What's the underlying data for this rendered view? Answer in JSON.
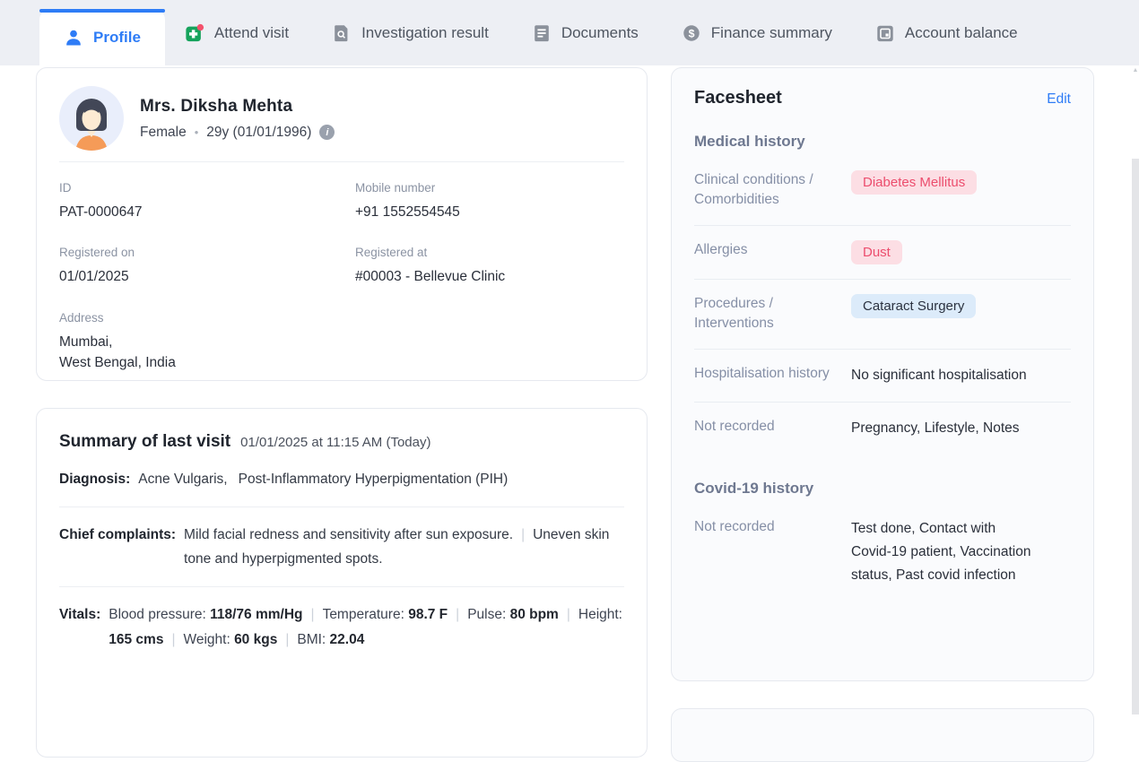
{
  "colors": {
    "accent_blue": "#2e7cf6",
    "tabbar_bg": "#edeff4",
    "green_icon": "#16a35c",
    "red_badge": "#f4516c",
    "chip_red_bg": "#fcdee4",
    "chip_red_text": "#ec4d6d",
    "chip_blue_bg": "#dcebfa",
    "label_gray": "#858fa6"
  },
  "tabs": [
    {
      "label": "Profile",
      "icon": "person",
      "active": true
    },
    {
      "label": "Attend visit",
      "icon": "plus-badge",
      "active": false
    },
    {
      "label": "Investigation result",
      "icon": "doc-search",
      "active": false
    },
    {
      "label": "Documents",
      "icon": "doc-lines",
      "active": false
    },
    {
      "label": "Finance summary",
      "icon": "dollar-circle",
      "active": false
    },
    {
      "label": "Account balance",
      "icon": "card",
      "active": false
    }
  ],
  "patient": {
    "name": "Mrs. Diksha Mehta",
    "gender": "Female",
    "separator_dot": "•",
    "age_dob": "29y (01/01/1996)",
    "info_glyph": "i",
    "id": {
      "label": "ID",
      "value": "PAT-0000647"
    },
    "mobile": {
      "label": "Mobile number",
      "value": "+91 1552554545"
    },
    "registered_on": {
      "label": "Registered on",
      "value": "01/01/2025"
    },
    "registered_at": {
      "label": "Registered at",
      "value": "#00003 - Bellevue Clinic"
    },
    "address": {
      "label": "Address",
      "line1": "Mumbai,",
      "line2": "West Bengal, India"
    }
  },
  "last_visit": {
    "title": "Summary of last visit",
    "datetime": "01/01/2025 at 11:15 AM (Today)",
    "diagnosis_label": "Diagnosis:",
    "diagnosis_items": [
      "Acne Vulgaris",
      "Post-Inflammatory Hyperpigmentation (PIH)"
    ],
    "chief_label": "Chief complaints:",
    "chief_complaints": [
      "Mild facial redness and sensitivity after sun exposure.",
      "Uneven skin tone and hyperpigmented spots."
    ],
    "vitals_label": "Vitals:",
    "vitals": [
      {
        "label": "Blood pressure:",
        "value": "118/76 mm/Hg"
      },
      {
        "label": "Temperature:",
        "value": "98.7 F"
      },
      {
        "label": "Pulse:",
        "value": "80 bpm"
      },
      {
        "label": "Height:",
        "value": "165 cms"
      },
      {
        "label": "Weight:",
        "value": "60 kgs"
      },
      {
        "label": "BMI:",
        "value": "22.04"
      }
    ]
  },
  "facesheet": {
    "title": "Facesheet",
    "edit_label": "Edit",
    "sections": [
      {
        "heading": "Medical history",
        "rows": [
          {
            "label": "Clinical conditions / Comorbidities",
            "chips": [
              {
                "text": "Diabetes Mellitus",
                "style": "red"
              }
            ]
          },
          {
            "label": "Allergies",
            "chips": [
              {
                "text": "Dust",
                "style": "red"
              }
            ]
          },
          {
            "label": "Procedures / Interventions",
            "chips": [
              {
                "text": "Cataract Surgery",
                "style": "blue"
              }
            ]
          },
          {
            "label": "Hospitalisation history",
            "text": "No significant hospitalisation"
          },
          {
            "label": "Not recorded",
            "text": "Pregnancy, Lifestyle, Notes"
          }
        ]
      },
      {
        "heading": "Covid-19 history",
        "rows": [
          {
            "label": "Not recorded",
            "text": "Test done, Contact with Covid-19 patient, Vaccination status, Past covid infection"
          }
        ]
      }
    ]
  },
  "scrollbar": {
    "up_arrow": "▲"
  }
}
